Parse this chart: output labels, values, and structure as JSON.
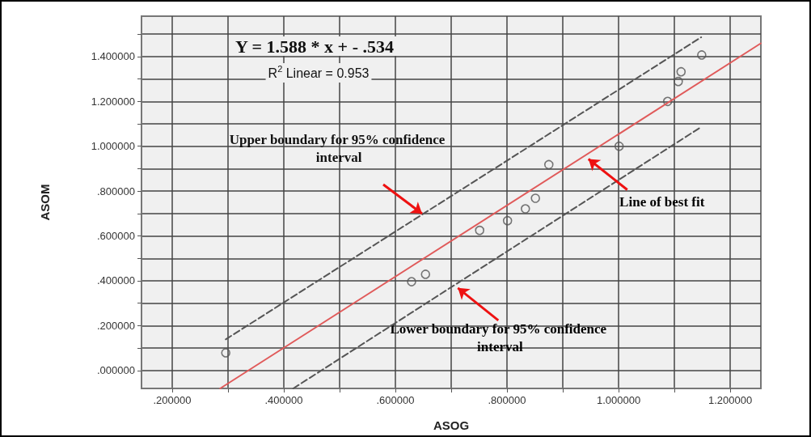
{
  "chart_data": {
    "type": "scatter",
    "xlabel": "ASOG",
    "ylabel": "ASOM",
    "xlim": [
      0.145,
      1.255
    ],
    "ylim": [
      -0.08,
      1.58
    ],
    "xticks": [
      {
        "value": 0.2,
        "label": ".200000"
      },
      {
        "value": 0.3,
        "label": null
      },
      {
        "value": 0.4,
        "label": ".400000"
      },
      {
        "value": 0.5,
        "label": null
      },
      {
        "value": 0.6,
        "label": ".600000"
      },
      {
        "value": 0.7,
        "label": null
      },
      {
        "value": 0.8,
        "label": ".800000"
      },
      {
        "value": 0.9,
        "label": null
      },
      {
        "value": 1.0,
        "label": "1.000000"
      },
      {
        "value": 1.1,
        "label": null
      },
      {
        "value": 1.2,
        "label": "1.200000"
      }
    ],
    "yticks": [
      {
        "value": 0,
        "label": ".000000"
      },
      {
        "value": 0.1,
        "label": null
      },
      {
        "value": 0.2,
        "label": ".200000"
      },
      {
        "value": 0.3,
        "label": null
      },
      {
        "value": 0.4,
        "label": ".400000"
      },
      {
        "value": 0.5,
        "label": null
      },
      {
        "value": 0.6,
        "label": ".600000"
      },
      {
        "value": 0.7,
        "label": null
      },
      {
        "value": 0.8,
        "label": ".800000"
      },
      {
        "value": 0.9,
        "label": null
      },
      {
        "value": 1.0,
        "label": "1.000000"
      },
      {
        "value": 1.1,
        "label": null
      },
      {
        "value": 1.2,
        "label": "1.200000"
      },
      {
        "value": 1.3,
        "label": null
      },
      {
        "value": 1.4,
        "label": "1.400000"
      },
      {
        "value": 1.5,
        "label": null
      }
    ],
    "grid": true,
    "marker": "circle",
    "annotations": [
      "Y = 1.588 * x + - .534",
      "R$^{2}$ Linear = 0.953",
      "Upper boundary for 95% confidence interval",
      {
        "text": "Line of best fit",
        "x": 0.946,
        "y": 0.943
      },
      {
        "text": "Lower boundary for 95% confidence interval",
        "x": 0.712,
        "y": 0.368
      }
    ],
    "series": [
      {
        "color": "#555555",
        "x": [
          0.296,
          0.629,
          0.654,
          0.751,
          0.801,
          0.833,
          0.851,
          0.875,
          1.001,
          1.088,
          1.107,
          1.112,
          1.149
        ],
        "values": [
          0.079,
          0.396,
          0.429,
          0.625,
          0.668,
          0.721,
          0.768,
          0.918,
          1.0,
          1.2,
          1.289,
          1.332,
          1.407
        ]
      },
      {
        "type": "line",
        "marker": "none",
        "color": "#e05a5a",
        "x": [
          0.286,
          1.255
        ],
        "values": [
          -0.08,
          1.459
        ]
      },
      {
        "type": "line",
        "marker": "none",
        "color": "#555555",
        "line_style": "dashed",
        "x": [
          0.296,
          1.148
        ],
        "values": [
          0.139,
          1.486
        ]
      },
      {
        "type": "line",
        "marker": "none",
        "color": "#555555",
        "line_style": "dashed",
        "x": [
          0.417,
          1.148
        ],
        "values": [
          -0.08,
          1.086
        ]
      }
    ]
  }
}
